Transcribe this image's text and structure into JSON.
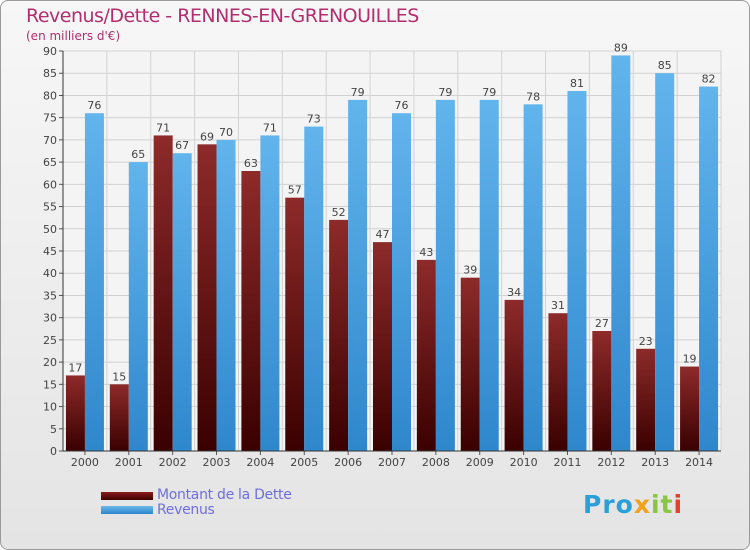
{
  "header": {
    "title": "Revenus/Dette - RENNES-EN-GRENOUILLES",
    "subtitle": "(en milliers d'€)"
  },
  "chart_data": {
    "type": "bar",
    "title": "Revenus/Dette - RENNES-EN-GRENOUILLES",
    "ylabel": "(en milliers d'€)",
    "xlabel": "",
    "ylim": [
      0,
      90
    ],
    "ytick_step": 5,
    "grid": true,
    "categories": [
      "2000",
      "2001",
      "2002",
      "2003",
      "2004",
      "2005",
      "2006",
      "2007",
      "2008",
      "2009",
      "2010",
      "2011",
      "2012",
      "2013",
      "2014"
    ],
    "series": [
      {
        "name": "Montant de la Dette",
        "color": "#6b0f0f",
        "values": [
          17,
          15,
          71,
          69,
          63,
          57,
          52,
          47,
          43,
          39,
          34,
          31,
          27,
          23,
          19
        ]
      },
      {
        "name": "Revenus",
        "color": "#4aa3e3",
        "values": [
          76,
          65,
          67,
          70,
          71,
          73,
          79,
          76,
          79,
          79,
          78,
          81,
          89,
          85,
          82
        ]
      }
    ]
  },
  "legend": {
    "items": [
      {
        "label": "Montant de la Dette"
      },
      {
        "label": "Revenus"
      }
    ]
  },
  "brand": {
    "logo_text": "Proxiti",
    "parts": [
      "Pro",
      "x",
      "it",
      "i"
    ]
  }
}
